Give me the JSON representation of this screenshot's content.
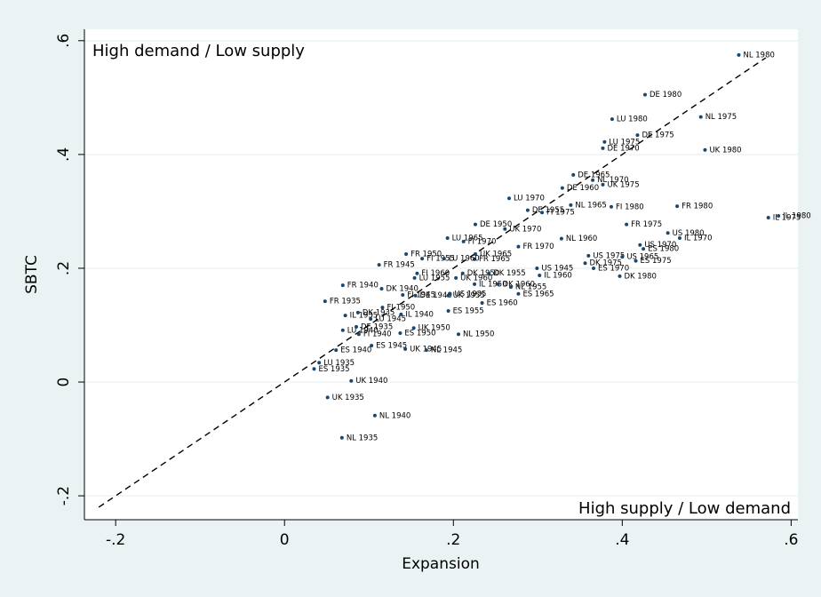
{
  "chart_data": {
    "type": "scatter",
    "x_label": "Expansion",
    "y_label": "SBTC",
    "annotations": [
      "High demand / Low supply",
      "High supply / Low demand"
    ],
    "xlim": [
      -0.237,
      0.608
    ],
    "ylim": [
      -0.242,
      0.62
    ],
    "xticks": [
      {
        "value": -0.2,
        "label": "-.2"
      },
      0,
      {
        "value": 0.2,
        "label": ".2"
      },
      {
        "value": 0.4,
        "label": ".4"
      },
      {
        "value": 0.6,
        "label": ".6"
      }
    ],
    "yticks": [
      {
        "value": -0.2,
        "label": "-.2"
      },
      0,
      {
        "value": 0.2,
        "label": ".2"
      },
      {
        "value": 0.4,
        "label": ".4"
      },
      {
        "value": 0.6,
        "label": ".6"
      }
    ],
    "grid": true,
    "color": "#1a476f",
    "reference_line": [
      -0.22,
      0.57
    ],
    "labels": [
      "NL 1980",
      "DE 1980",
      "LU 1980",
      "NL 1975",
      "DE 1975",
      "LU 1975",
      "DE 1970",
      "UK 1980",
      "DE 1965",
      "NL 1970",
      "UK 1975",
      "DE 1960",
      "LU 1970",
      "NL 1965",
      "FR 1980",
      "FI 1980",
      "DE 1955",
      "FI 1975",
      "IL 1975",
      "IL 1980",
      "DE 1950",
      "UK 1970",
      "FR 1975",
      "US 1980",
      "IL 1970",
      "LU 1965",
      "FI 1970",
      "NL 1960",
      "FR 1970",
      "US 1970",
      "ES 1980",
      "FR 1950",
      "UK 1965",
      "FR 1945",
      "FR 1965",
      "FI 1955",
      "LU 1960",
      "US 1975",
      "US 1965",
      "DK 1975",
      "ES 1970",
      "ES 1975",
      "US 1945",
      "IL 1960",
      "DK 1980",
      "FI 1960",
      "DK 1950",
      "DK 1955",
      "LU 1955",
      "UK 1960",
      "IL 1950",
      "DK 1960",
      "NL 1955",
      "ES 1965",
      "DK 1940",
      "FR 1940",
      "FI 1945",
      "DE 1940",
      "UK 1955",
      "US 1935",
      "ES 1960",
      "FR 1935",
      "FI 1950",
      "ES 1955",
      "IL 1935",
      "DK 1935",
      "LU 1945",
      "IL 1940",
      "NL 1950",
      "LU 1940",
      "DE 1935",
      "FI 1940",
      "ES 1950",
      "UK 1950",
      "ES 1945",
      "UK 1945",
      "NL 1945",
      "ES 1940",
      "LU 1935",
      "ES 1935",
      "UK 1940",
      "UK 1935",
      "NL 1940",
      "NL 1935"
    ],
    "x": [
      0.538,
      0.427,
      0.388,
      0.493,
      0.418,
      0.379,
      0.377,
      0.498,
      0.342,
      0.365,
      0.377,
      0.329,
      0.266,
      0.339,
      0.465,
      0.387,
      0.288,
      0.305,
      0.573,
      0.585,
      0.226,
      0.261,
      0.405,
      0.454,
      0.468,
      0.193,
      0.212,
      0.328,
      0.277,
      0.421,
      0.425,
      0.144,
      0.226,
      0.112,
      0.225,
      0.163,
      0.189,
      0.36,
      0.4,
      0.356,
      0.366,
      0.416,
      0.299,
      0.302,
      0.397,
      0.157,
      0.211,
      0.242,
      0.154,
      0.203,
      0.225,
      0.253,
      0.268,
      0.277,
      0.115,
      0.069,
      0.14,
      0.155,
      0.194,
      0.196,
      0.234,
      0.048,
      0.116,
      0.194,
      0.072,
      0.087,
      0.102,
      0.138,
      0.206,
      0.069,
      0.085,
      0.088,
      0.137,
      0.153,
      0.103,
      0.143,
      0.168,
      0.061,
      0.041,
      0.035,
      0.079,
      0.051,
      0.107,
      0.068
    ],
    "y": [
      0.575,
      0.505,
      0.462,
      0.466,
      0.434,
      0.422,
      0.411,
      0.408,
      0.364,
      0.355,
      0.347,
      0.341,
      0.323,
      0.311,
      0.309,
      0.308,
      0.302,
      0.298,
      0.289,
      0.292,
      0.277,
      0.269,
      0.277,
      0.262,
      0.253,
      0.253,
      0.247,
      0.252,
      0.238,
      0.241,
      0.234,
      0.225,
      0.225,
      0.206,
      0.216,
      0.217,
      0.217,
      0.222,
      0.22,
      0.209,
      0.2,
      0.213,
      0.2,
      0.1875,
      0.186,
      0.191,
      0.191,
      0.191,
      0.183,
      0.183,
      0.172,
      0.172,
      0.167,
      0.155,
      0.164,
      0.17,
      0.153,
      0.152,
      0.152,
      0.155,
      0.139,
      0.142,
      0.131,
      0.125,
      0.117,
      0.122,
      0.111,
      0.119,
      0.084,
      0.091,
      0.097,
      0.084,
      0.086,
      0.095,
      0.064,
      0.058,
      0.056,
      0.056,
      0.034,
      0.023,
      0.002,
      -0.027,
      -0.059,
      -0.098
    ]
  }
}
